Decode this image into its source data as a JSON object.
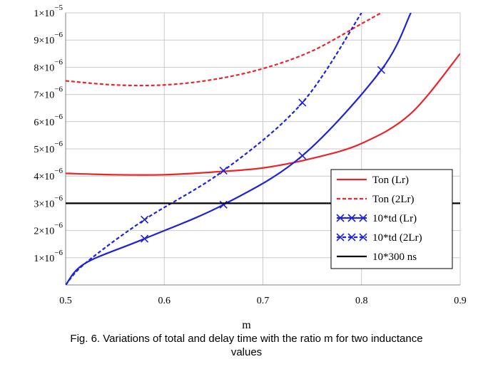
{
  "chart_data": {
    "type": "line",
    "xlabel": "m",
    "ylabel": "",
    "xlim": [
      0.5,
      0.9
    ],
    "ylim": [
      0,
      1e-05
    ],
    "x_ticks": [
      {
        "value": 0.5,
        "label": "0.5"
      },
      {
        "value": 0.6,
        "label": "0.6"
      },
      {
        "value": 0.7,
        "label": "0.7"
      },
      {
        "value": 0.8,
        "label": "0.8"
      },
      {
        "value": 0.9,
        "label": "0.9"
      }
    ],
    "y_ticks": [
      {
        "value": 1e-06,
        "mantissa": "1",
        "exp": "−6"
      },
      {
        "value": 2e-06,
        "mantissa": "2",
        "exp": "−6"
      },
      {
        "value": 3e-06,
        "mantissa": "3",
        "exp": "−6"
      },
      {
        "value": 4e-06,
        "mantissa": "4",
        "exp": "−6"
      },
      {
        "value": 5e-06,
        "mantissa": "5",
        "exp": "−6"
      },
      {
        "value": 6e-06,
        "mantissa": "6",
        "exp": "−6"
      },
      {
        "value": 7e-06,
        "mantissa": "7",
        "exp": "−6"
      },
      {
        "value": 8e-06,
        "mantissa": "8",
        "exp": "−6"
      },
      {
        "value": 9e-06,
        "mantissa": "9",
        "exp": "−6"
      },
      {
        "value": 1e-05,
        "mantissa": "1",
        "exp": "−5"
      }
    ],
    "grid": true,
    "legend_position": "bottom-right",
    "series": [
      {
        "name": "Ton (Lr)",
        "color": "#e8252b",
        "dash": "solid",
        "marker": "none",
        "x": [
          0.5,
          0.55,
          0.6,
          0.65,
          0.7,
          0.75,
          0.8,
          0.85,
          0.9
        ],
        "y": [
          4.1e-06,
          4.05e-06,
          4.05e-06,
          4.15e-06,
          4.3e-06,
          4.65e-06,
          5.2e-06,
          6.3e-06,
          8.5e-06
        ]
      },
      {
        "name": "Ton (2Lr)",
        "color": "#e8252b",
        "dash": "dashed",
        "marker": "none",
        "x": [
          0.5,
          0.55,
          0.6,
          0.65,
          0.7,
          0.75,
          0.8,
          0.82
        ],
        "y": [
          7.5e-06,
          7.35e-06,
          7.35e-06,
          7.55e-06,
          7.95e-06,
          8.6e-06,
          9.6e-06,
          1e-05
        ]
      },
      {
        "name": "10*td (Lr)",
        "color": "#1f23d6",
        "dash": "solid",
        "marker": "x",
        "x": [
          0.5,
          0.52,
          0.58,
          0.66,
          0.74,
          0.82,
          0.85
        ],
        "y": [
          0,
          8e-07,
          1.7e-06,
          2.95e-06,
          4.75e-06,
          7.9e-06,
          1e-05
        ],
        "markers_x": [
          0.58,
          0.66,
          0.74,
          0.82
        ],
        "markers_y": [
          1.7e-06,
          2.95e-06,
          4.75e-06,
          7.9e-06
        ]
      },
      {
        "name": "10*td (2Lr)",
        "color": "#1f23d6",
        "dash": "dashed",
        "marker": "x",
        "x": [
          0.5,
          0.52,
          0.58,
          0.66,
          0.74,
          0.8
        ],
        "y": [
          0,
          8e-07,
          2.4e-06,
          4.2e-06,
          6.7e-06,
          1e-05
        ],
        "markers_x": [
          0.58,
          0.66,
          0.74
        ],
        "markers_y": [
          2.4e-06,
          4.2e-06,
          6.7e-06
        ]
      },
      {
        "name": "10*300 ns",
        "color": "#000000",
        "dash": "solid",
        "marker": "none",
        "x": [
          0.5,
          0.9
        ],
        "y": [
          3e-06,
          3e-06
        ]
      }
    ]
  },
  "caption": {
    "line1": "Fig. 6. Variations of total and delay time with the ratio m for two inductance",
    "line2": "values"
  }
}
